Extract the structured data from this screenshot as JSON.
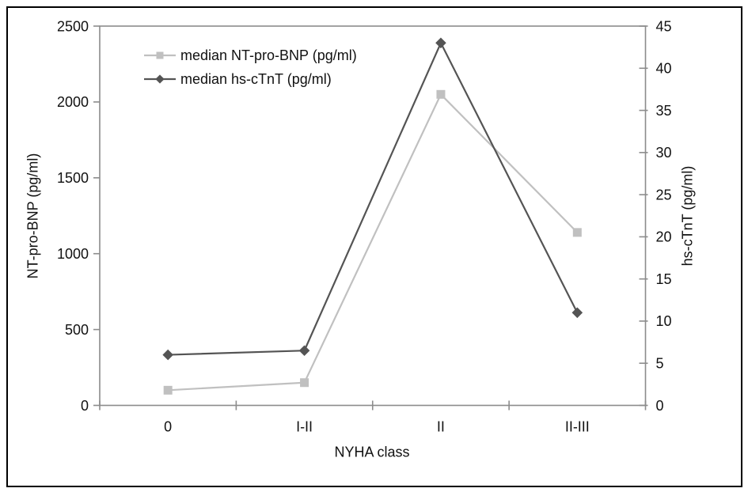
{
  "chart_data": {
    "type": "line",
    "categories": [
      "0",
      "I-II",
      "II",
      "II-III"
    ],
    "xlabel": "NYHA class",
    "left_axis": {
      "label": "NT-pro-BNP (pg/ml)",
      "min": 0,
      "max": 2500,
      "ticks": [
        0,
        500,
        1000,
        1500,
        2000,
        2500
      ]
    },
    "right_axis": {
      "label": "hs-cTnT (pg/ml)",
      "min": 0,
      "max": 45,
      "ticks": [
        0,
        5,
        10,
        15,
        20,
        25,
        30,
        35,
        40,
        45
      ]
    },
    "series": [
      {
        "name": "median NT-pro-BNP (pg/ml)",
        "axis": "left",
        "marker": "square",
        "color": "#c0c0c0",
        "values": [
          100,
          150,
          2050,
          1140
        ]
      },
      {
        "name": "median hs-cTnT (pg/ml)",
        "axis": "right",
        "marker": "diamond",
        "color": "#545454",
        "values": [
          6,
          6.5,
          43,
          11
        ]
      }
    ],
    "legend_position": "top-left-inside",
    "grid": false,
    "axis_color": "#8c8c8c",
    "text_color": "#111111",
    "border_color": "#000000"
  }
}
